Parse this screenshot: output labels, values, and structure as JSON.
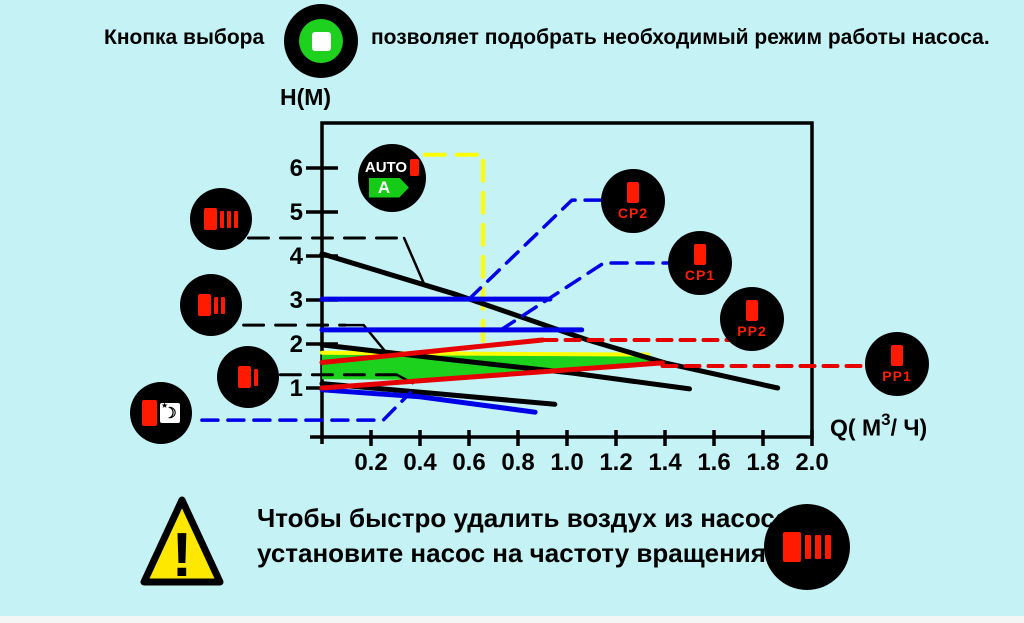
{
  "header": {
    "before": "Кнопка выбора",
    "after": "позволяет подобрать необходимый режим работы насоса."
  },
  "footer": {
    "line1": "Чтобы быстро удалить воздух из насоса,",
    "line2": "установите насос на частоту вращения"
  },
  "warning": {
    "mark": "!"
  },
  "icons": {
    "select_button": {
      "name": "mode-select-button"
    },
    "auto": {
      "label": "AUTO",
      "energy_class": "A"
    },
    "speed3": {
      "bars": 3
    },
    "speed2": {
      "bars": 2
    },
    "speed1": {
      "bars": 1
    },
    "night": {
      "moon": "☽",
      "star": "★"
    },
    "cp2": {
      "label": "CP2"
    },
    "cp1": {
      "label": "CP1"
    },
    "pp2": {
      "label": "PP2"
    },
    "pp1": {
      "label": "PP1"
    },
    "speed3_big": {
      "bars": 3
    }
  },
  "chart_data": {
    "type": "line",
    "title": "",
    "ylabel": "H(M)",
    "xlabel": "Q( М3/ Ч)",
    "xlabel_parts": {
      "pre": "Q( М",
      "sup": "3",
      "post": "/ Ч)"
    },
    "xlim": [
      0,
      2.0
    ],
    "ylim": [
      0,
      6.5
    ],
    "grid": false,
    "x_ticks": [
      "0.2",
      "0.4",
      "0.6",
      "0.8",
      "1.0",
      "1.2",
      "1.4",
      "1.6",
      "1.8",
      "2.0"
    ],
    "y_ticks": [
      "1",
      "2",
      "3",
      "4",
      "5",
      "6"
    ],
    "colors": {
      "background": "#c4f2f5",
      "black": "#000000",
      "blue": "#0000e8",
      "red": "#e60000",
      "yellow": "#ffff00",
      "green_fill": "#1dd21d",
      "indicator_red": "#ff1a00"
    },
    "series": [
      {
        "name": "auto-operating-area",
        "type": "area",
        "fill": "#1dd21d",
        "points": [
          [
            0,
            1.8
          ],
          [
            1.33,
            1.76
          ],
          [
            1.4,
            1.57
          ],
          [
            1.0,
            1.4
          ],
          [
            0.5,
            1.18
          ],
          [
            0,
            1.2
          ]
        ]
      },
      {
        "name": "auto-range-top-line",
        "color": "#ffff00",
        "width": 4,
        "points": [
          [
            0,
            1.8
          ],
          [
            1.33,
            1.76
          ]
        ]
      },
      {
        "name": "auto-connector",
        "color": "#ffff00",
        "width": 4,
        "dash": "20 12",
        "points": [
          [
            0.42,
            6.3
          ],
          [
            0.657,
            6.3
          ],
          [
            0.657,
            1.84
          ]
        ]
      },
      {
        "name": "speed3-curve",
        "color": "#000000",
        "width": 5,
        "points": [
          [
            0,
            4.05
          ],
          [
            0.55,
            3.12
          ],
          [
            1.08,
            2.1
          ],
          [
            1.4,
            1.57
          ],
          [
            1.86,
            1.0
          ]
        ]
      },
      {
        "name": "speed2-curve",
        "color": "#000000",
        "width": 5,
        "points": [
          [
            0,
            1.98
          ],
          [
            0.5,
            1.66
          ],
          [
            1.02,
            1.34
          ],
          [
            1.5,
            0.98
          ]
        ]
      },
      {
        "name": "speed1-curve",
        "color": "#000000",
        "width": 5,
        "points": [
          [
            0,
            1.1
          ],
          [
            0.45,
            0.88
          ],
          [
            0.95,
            0.63
          ]
        ]
      },
      {
        "name": "speed3-connector",
        "color": "#000000",
        "width": 3,
        "dash": "20 12",
        "points": [
          [
            -0.3,
            4.41
          ],
          [
            0.335,
            4.41
          ]
        ]
      },
      {
        "name": "speed3-connector-tail",
        "color": "#000000",
        "width": 2.5,
        "points": [
          [
            0.335,
            4.41
          ],
          [
            0.42,
            3.32
          ]
        ]
      },
      {
        "name": "speed2-connector",
        "color": "#000000",
        "width": 3,
        "dash": "20 12",
        "points": [
          [
            -0.32,
            2.43
          ],
          [
            0.095,
            2.43
          ]
        ]
      },
      {
        "name": "speed2-connector-tail",
        "color": "#000000",
        "width": 2.5,
        "points": [
          [
            0.095,
            2.43
          ],
          [
            0.17,
            2.43
          ],
          [
            0.26,
            1.82
          ]
        ]
      },
      {
        "name": "speed1-connector",
        "color": "#000000",
        "width": 3,
        "dash": "20 12",
        "points": [
          [
            -0.17,
            1.3
          ],
          [
            0.306,
            1.3
          ]
        ]
      },
      {
        "name": "speed1-connector-tail",
        "color": "#000000",
        "width": 2.5,
        "points": [
          [
            0.306,
            1.3
          ],
          [
            0.37,
            1.11
          ]
        ]
      },
      {
        "name": "night-curve",
        "color": "#0000e8",
        "width": 5,
        "points": [
          [
            0,
            0.96
          ],
          [
            0.4,
            0.8
          ],
          [
            0.87,
            0.45
          ]
        ]
      },
      {
        "name": "cp2-level-line",
        "color": "#0000e8",
        "width": 5,
        "points": [
          [
            0,
            3.02
          ],
          [
            0.93,
            3.02
          ]
        ]
      },
      {
        "name": "cp1-level-line",
        "color": "#0000e8",
        "width": 5,
        "points": [
          [
            0,
            2.32
          ],
          [
            1.06,
            2.32
          ]
        ]
      },
      {
        "name": "cp2-connector",
        "color": "#0000e8",
        "width": 3.5,
        "dash": "16 10",
        "points": [
          [
            0.6,
            3.02
          ],
          [
            1.02,
            5.27
          ],
          [
            1.27,
            5.27
          ]
        ]
      },
      {
        "name": "cp1-connector",
        "color": "#0000e8",
        "width": 3.5,
        "dash": "16 10",
        "points": [
          [
            0.73,
            2.32
          ],
          [
            1.15,
            3.84
          ],
          [
            1.54,
            3.84
          ]
        ]
      },
      {
        "name": "night-connector",
        "color": "#0000e8",
        "width": 3.5,
        "dash": "16 10",
        "points": [
          [
            -0.49,
            0.27
          ],
          [
            0.25,
            0.27
          ],
          [
            0.36,
            0.89
          ]
        ]
      },
      {
        "name": "pp2-curve",
        "color": "#e60000",
        "width": 5,
        "points": [
          [
            0,
            1.58
          ],
          [
            0.9,
            2.09
          ]
        ]
      },
      {
        "name": "pp1-curve",
        "color": "#e60000",
        "width": 5,
        "points": [
          [
            0,
            1.0
          ],
          [
            1.39,
            1.57
          ]
        ]
      },
      {
        "name": "pp2-connector",
        "color": "#e60000",
        "width": 4,
        "dash": "14 9",
        "points": [
          [
            0.9,
            2.09
          ],
          [
            1.76,
            2.09
          ]
        ]
      },
      {
        "name": "pp1-connector",
        "color": "#e60000",
        "width": 4,
        "dash": "14 9",
        "points": [
          [
            1.39,
            1.5
          ],
          [
            2.35,
            1.5
          ]
        ]
      }
    ]
  }
}
